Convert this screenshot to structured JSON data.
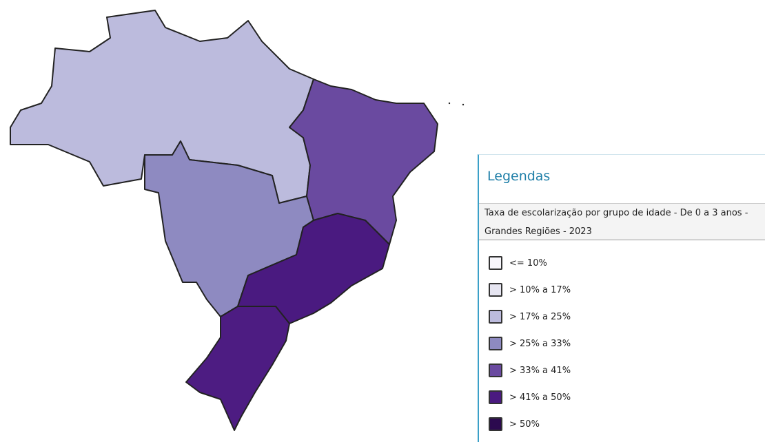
{
  "legend": {
    "title": "Legendas",
    "subtitle": "Taxa de escolarização por grupo de idade - De 0 a 3 anos - Grandes Regiões - 2023",
    "items": [
      {
        "label": "<= 10%",
        "color": "#f7f6fb"
      },
      {
        "label": "> 10% a 17%",
        "color": "#e6e5f1"
      },
      {
        "label": "> 17% a 25%",
        "color": "#bcbbdd"
      },
      {
        "label": "> 25% a 33%",
        "color": "#8e8ac1"
      },
      {
        "label": "> 33% a 41%",
        "color": "#6a4aa0"
      },
      {
        "label": "> 41% a 50%",
        "color": "#4a1a80"
      },
      {
        "label": "> 50%",
        "color": "#2c0a4f"
      }
    ]
  }
}
